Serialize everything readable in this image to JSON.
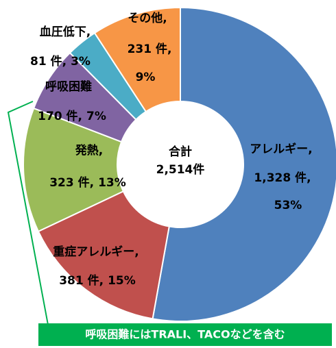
{
  "chart_data": {
    "type": "donut",
    "categories": [
      "アレルギー,",
      "重症アレルギー,",
      "発熱,",
      "呼吸困難",
      "血圧低下,",
      "その他,"
    ],
    "values": [
      1328,
      381,
      323,
      170,
      81,
      231
    ],
    "value_labels": [
      "1,328 件,",
      "381 件,",
      "323 件,",
      "170 件,",
      "81 件,",
      "231 件,"
    ],
    "percent_labels": [
      "53%",
      "15%",
      "13%",
      "7%",
      "3%",
      "9%"
    ],
    "colors": [
      "#4f81bd",
      "#c0504d",
      "#9bbb59",
      "#8064a2",
      "#4bacc6",
      "#f79646"
    ],
    "total_label": "合計",
    "total_value_label": "2,514件",
    "note": "呼吸困難にはTRALI、TACOなどを含む"
  }
}
